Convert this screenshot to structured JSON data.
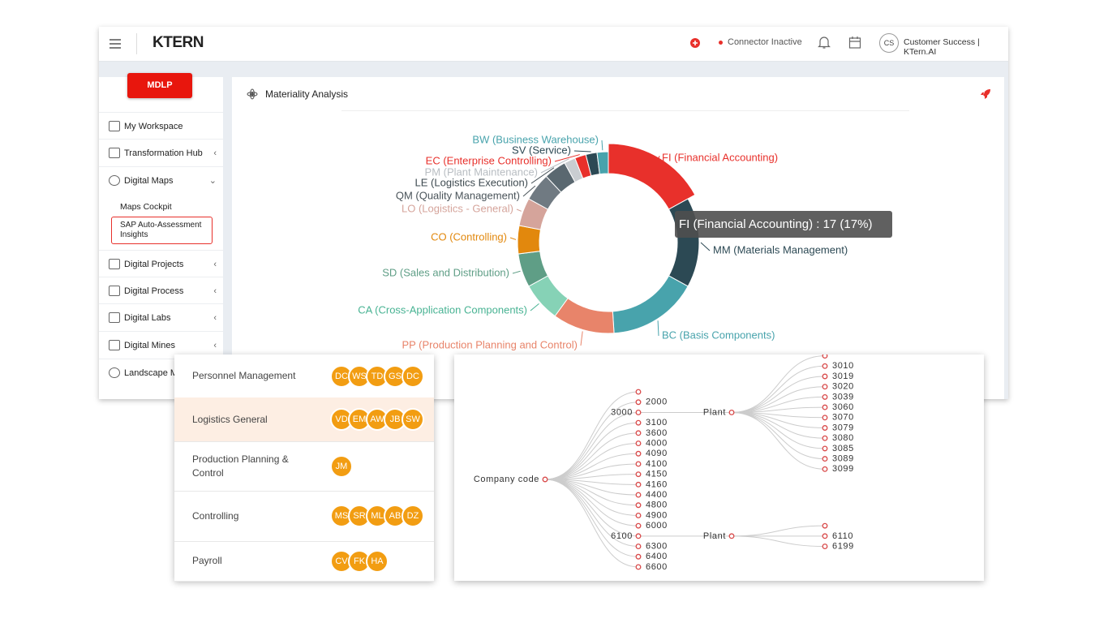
{
  "header": {
    "logo": "KTERN",
    "connector": "Connector Inactive",
    "avatar": "CS",
    "user": "Customer Success | KTern.AI"
  },
  "sidebar": {
    "button": "MDLP",
    "items": [
      "My Workspace",
      "Transformation Hub",
      "Digital Maps",
      "Maps Cockpit",
      "SAP Auto-Assessment Insights",
      "Digital Projects",
      "Digital Process",
      "Digital Labs",
      "Digital Mines",
      "Landscape Ma"
    ]
  },
  "panel": {
    "title": "Materiality Analysis"
  },
  "chart_data": {
    "type": "donut",
    "categories": [
      "FI (Financial Accounting)",
      "MM (Materials Management)",
      "BC (Basis Components)",
      "PP (Production Planning and Control)",
      "CA (Cross-Application Components)",
      "SD (Sales and Distribution)",
      "CO (Controlling)",
      "LO (Logistics - General)",
      "QM (Quality Management)",
      "LE (Logistics Execution)",
      "PM (Plant Maintenance)",
      "EC (Enterprise Controlling)",
      "SV (Service)",
      "BW (Business Warehouse)"
    ],
    "values": [
      17,
      16,
      16,
      11,
      7,
      6,
      5,
      5,
      5,
      4,
      2,
      2,
      2,
      2
    ],
    "colors": [
      "#e8302b",
      "#2c4954",
      "#48a3ac",
      "#e8846a",
      "#86d2b6",
      "#5f9e86",
      "#e2880d",
      "#d5a49b",
      "#707a82",
      "#5a6870",
      "#c9cdd1",
      "#e8302b",
      "#2c4954",
      "#48a3ac"
    ],
    "tooltip": "FI (Financial Accounting) : 17 (17%)"
  },
  "table": {
    "rows": [
      {
        "name": "Personnel Management",
        "avatars": [
          "DC",
          "WS",
          "TD",
          "GS",
          "DC"
        ]
      },
      {
        "name": "Logistics General",
        "avatars": [
          "VD",
          "EM",
          "AW",
          "JB",
          "SW"
        ]
      },
      {
        "name": "Production Planning & Control",
        "avatars": [
          "JM"
        ]
      },
      {
        "name": "Controlling",
        "avatars": [
          "MS",
          "SR",
          "ML",
          "AB",
          "DZ"
        ]
      },
      {
        "name": "Payroll",
        "avatars": [
          "CV",
          "FK",
          "HA"
        ]
      }
    ]
  },
  "tree": {
    "name": "Company code",
    "children": [
      {
        "name": null
      },
      {
        "name": "2000"
      },
      {
        "name": "3000",
        "children": [
          {
            "name": "Plant",
            "children": [
              {
                "name": null
              },
              {
                "name": "3010"
              },
              {
                "name": "3019"
              },
              {
                "name": "3020"
              },
              {
                "name": "3039"
              },
              {
                "name": "3060"
              },
              {
                "name": "3070"
              },
              {
                "name": "3079"
              },
              {
                "name": "3080"
              },
              {
                "name": "3085"
              },
              {
                "name": "3089"
              },
              {
                "name": "3099"
              }
            ]
          }
        ]
      },
      {
        "name": "3100"
      },
      {
        "name": "3600"
      },
      {
        "name": "4000"
      },
      {
        "name": "4090"
      },
      {
        "name": "4100"
      },
      {
        "name": "4150"
      },
      {
        "name": "4160"
      },
      {
        "name": "4400"
      },
      {
        "name": "4800"
      },
      {
        "name": "4900"
      },
      {
        "name": "6000"
      },
      {
        "name": "6100",
        "children": [
          {
            "name": "Plant",
            "children": [
              {
                "name": null
              },
              {
                "name": "6110"
              },
              {
                "name": "6199"
              }
            ]
          }
        ]
      },
      {
        "name": "6300"
      },
      {
        "name": "6400"
      },
      {
        "name": "6600"
      }
    ]
  }
}
